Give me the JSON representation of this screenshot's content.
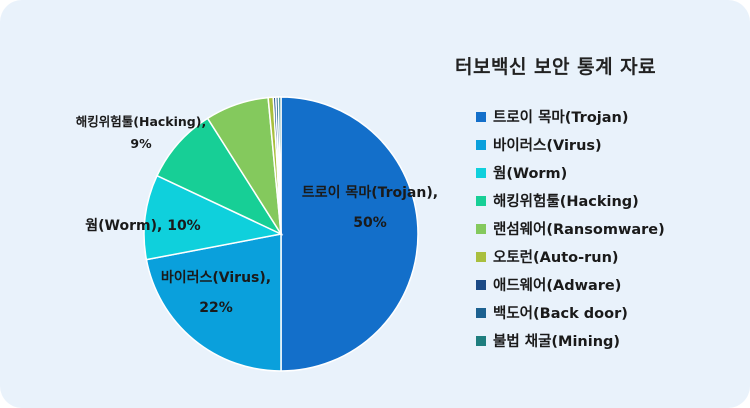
{
  "chart_data": {
    "type": "pie",
    "title": "터보백신 보안 통계 자료",
    "slices": [
      {
        "label": "트로이 목마(Trojan)",
        "value": 50,
        "color": "#136fca",
        "data_label": [
          "트로이 목마(Trojan),",
          "50%"
        ]
      },
      {
        "label": "바이러스(Virus)",
        "value": 22,
        "color": "#0aa0dc",
        "data_label": [
          "바이러스(Virus),",
          "22%"
        ]
      },
      {
        "label": "웜(Worm)",
        "value": 10,
        "color": "#0fd0dc",
        "data_label": [
          "웜(Worm), 10%"
        ]
      },
      {
        "label": "해킹위험툴(Hacking)",
        "value": 9,
        "color": "#17cf96",
        "data_label": [
          "해킹위험툴(Hacking),",
          "9%"
        ]
      },
      {
        "label": "랜섬웨어(Ransomware)",
        "value": 7.5,
        "color": "#84c95d",
        "data_label": []
      },
      {
        "label": "오토런(Auto-run)",
        "value": 0.6,
        "color": "#a9bf3e",
        "data_label": []
      },
      {
        "label": "애드웨어(Adware)",
        "value": 0.3,
        "color": "#1b4a86",
        "data_label": []
      },
      {
        "label": "백도어(Back door)",
        "value": 0.3,
        "color": "#1c6190",
        "data_label": []
      },
      {
        "label": "불법 채굴(Mining)",
        "value": 0.3,
        "color": "#1e7e7e",
        "data_label": []
      }
    ],
    "legend_position": "right"
  }
}
